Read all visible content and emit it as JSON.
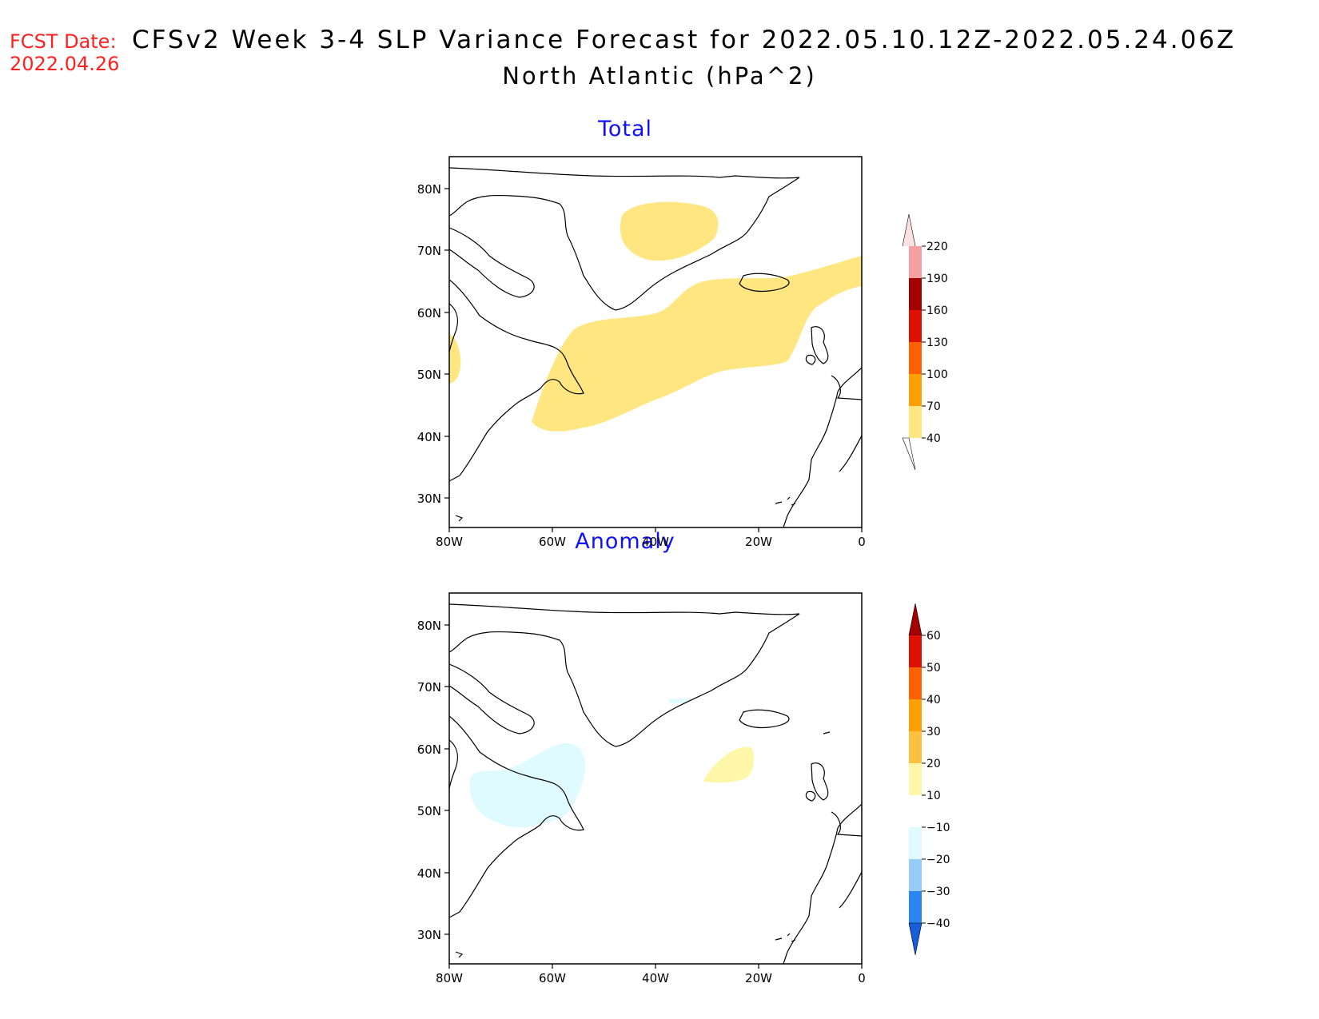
{
  "header": {
    "fcst_label": "FCST Date:",
    "fcst_date": "2022.04.26",
    "title": "CFSv2 Week 3-4 SLP Variance Forecast for 2022.05.10.12Z-2022.05.24.06Z",
    "subtitle": "North Atlantic (hPa^2)"
  },
  "map": {
    "lat_labels": [
      "80N",
      "70N",
      "60N",
      "50N",
      "40N",
      "30N"
    ],
    "lon_labels": [
      "80W",
      "60W",
      "40W",
      "20W",
      "0"
    ]
  },
  "panels": [
    {
      "title": "Total",
      "colorbar": {
        "labels": [
          "220",
          "190",
          "160",
          "130",
          "100",
          "70",
          "40"
        ],
        "colors": [
          "#fde0e0",
          "#f4a0a0",
          "#a50000",
          "#e01000",
          "#ff6000",
          "#ffa000",
          "#ffe680"
        ]
      }
    },
    {
      "title": "Anomaly",
      "colorbar": {
        "labels": [
          "60",
          "50",
          "40",
          "30",
          "20",
          "10",
          "−10",
          "−20",
          "−30",
          "−40"
        ],
        "colors": [
          "#a50000",
          "#e01000",
          "#ff6000",
          "#ffa000",
          "#ffc040",
          "#fff7a8",
          "#ffffff",
          "#e0fbff",
          "#96cdf8",
          "#2b85f0",
          "#1560d8"
        ]
      }
    }
  ]
}
